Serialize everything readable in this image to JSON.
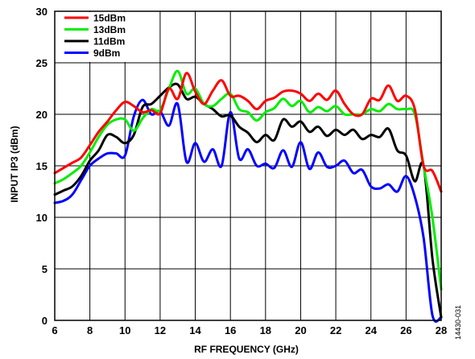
{
  "chart_data": {
    "type": "line",
    "xlabel": "RF FREQUENCY (GHz)",
    "ylabel": "INPUT IP3 (dBm)",
    "xlim": [
      6,
      28
    ],
    "ylim": [
      0,
      30
    ],
    "xticks": [
      "6",
      "8",
      "10",
      "12",
      "14",
      "16",
      "18",
      "20",
      "22",
      "24",
      "26",
      "28"
    ],
    "yticks": [
      "0",
      "5",
      "10",
      "15",
      "20",
      "25",
      "30"
    ],
    "grid": true,
    "legend_position": "top-left",
    "figure_id": "14430-031",
    "series": [
      {
        "name": "15dBm",
        "color": "#ff0000",
        "x": [
          6,
          6.5,
          7,
          7.5,
          8,
          8.5,
          9,
          9.5,
          10,
          10.5,
          11,
          11.5,
          12,
          12.5,
          13,
          13.5,
          14,
          14.5,
          15,
          15.5,
          16,
          16.5,
          17,
          17.5,
          18,
          18.5,
          19,
          19.5,
          20,
          20.5,
          21,
          21.5,
          22,
          22.5,
          23,
          23.5,
          24,
          24.5,
          25,
          25.5,
          26,
          26.5,
          27,
          27.5,
          28
        ],
        "y": [
          14.3,
          14.8,
          15.3,
          15.8,
          17.0,
          18.3,
          19.3,
          20.4,
          21.2,
          20.8,
          20.2,
          20.4,
          20.1,
          22.5,
          21.5,
          24.0,
          22.2,
          21.0,
          22.3,
          23.3,
          21.8,
          21.8,
          21.3,
          20.5,
          21.3,
          21.6,
          22.2,
          22.3,
          22.0,
          21.3,
          22.0,
          21.4,
          22.3,
          21.0,
          20.0,
          20.0,
          21.5,
          21.4,
          22.8,
          21.3,
          21.8,
          20.5,
          15.0,
          14.5,
          12.5
        ]
      },
      {
        "name": "13dBm",
        "color": "#00ee00",
        "x": [
          6,
          6.5,
          7,
          7.5,
          8,
          8.5,
          9,
          9.5,
          10,
          10.5,
          11,
          11.5,
          12,
          12.5,
          13,
          13.5,
          14,
          14.5,
          15,
          15.5,
          16,
          16.5,
          17,
          17.5,
          18,
          18.5,
          19,
          19.5,
          20,
          20.5,
          21,
          21.5,
          22,
          22.5,
          23,
          23.5,
          24,
          24.5,
          25,
          25.5,
          26,
          26.5,
          27,
          27.5,
          28
        ],
        "y": [
          13.3,
          13.7,
          14.3,
          15.0,
          16.3,
          17.8,
          19.0,
          19.5,
          19.5,
          18.4,
          19.6,
          20.5,
          20.4,
          22.5,
          24.2,
          22.0,
          22.5,
          21.0,
          20.8,
          21.5,
          22.0,
          20.5,
          20.2,
          19.4,
          20.2,
          20.6,
          21.5,
          20.8,
          21.3,
          20.2,
          20.7,
          20.3,
          20.8,
          20.0,
          20.0,
          20.0,
          20.5,
          20.3,
          21.0,
          20.5,
          20.5,
          20.0,
          15.0,
          10.0,
          3.0
        ]
      },
      {
        "name": "11dBm",
        "color": "#000000",
        "x": [
          6,
          6.5,
          7,
          7.5,
          8,
          8.5,
          9,
          9.5,
          10,
          10.5,
          11,
          11.5,
          12,
          12.5,
          13,
          13.5,
          14,
          14.5,
          15,
          15.5,
          16,
          16.5,
          17,
          17.5,
          18,
          18.5,
          19,
          19.5,
          20,
          20.5,
          21,
          21.5,
          22,
          22.5,
          23,
          23.5,
          24,
          24.5,
          25,
          25.5,
          26,
          26.5,
          27,
          27.5,
          28
        ],
        "y": [
          12.2,
          12.6,
          13.0,
          14.0,
          15.5,
          16.5,
          18.0,
          17.8,
          17.2,
          18.0,
          20.7,
          21.0,
          21.8,
          22.6,
          22.9,
          21.5,
          21.7,
          21.0,
          20.5,
          19.8,
          19.9,
          18.8,
          18.2,
          17.3,
          18.0,
          17.5,
          19.5,
          18.8,
          19.3,
          18.3,
          18.8,
          17.9,
          18.5,
          18.0,
          18.5,
          17.6,
          18.0,
          17.8,
          18.6,
          16.5,
          16.0,
          13.5,
          15.0,
          6.0,
          0.3
        ]
      },
      {
        "name": "9dBm",
        "color": "#0000ff",
        "x": [
          6,
          6.5,
          7,
          7.5,
          8,
          8.5,
          9,
          9.5,
          10,
          10.5,
          11,
          11.5,
          12,
          12.5,
          13,
          13.5,
          14,
          14.5,
          15,
          15.5,
          16,
          16.5,
          17,
          17.5,
          18,
          18.5,
          19,
          19.5,
          20,
          20.5,
          21,
          21.5,
          22,
          22.5,
          23,
          23.5,
          24,
          24.5,
          25,
          25.5,
          26,
          26.5,
          27,
          27.5,
          28
        ],
        "y": [
          11.4,
          11.6,
          12.2,
          13.6,
          15.0,
          15.7,
          16.2,
          16.2,
          16.0,
          19.8,
          21.4,
          20.0,
          20.3,
          18.9,
          21.0,
          15.4,
          17.2,
          15.4,
          16.6,
          15.0,
          20.2,
          15.7,
          16.6,
          15.0,
          15.2,
          14.8,
          16.5,
          14.9,
          17.3,
          14.7,
          16.3,
          14.9,
          15.0,
          15.5,
          14.3,
          14.6,
          13.0,
          12.8,
          13.2,
          12.5,
          14.0,
          12.0,
          8.0,
          0.5,
          0.3
        ]
      }
    ]
  }
}
